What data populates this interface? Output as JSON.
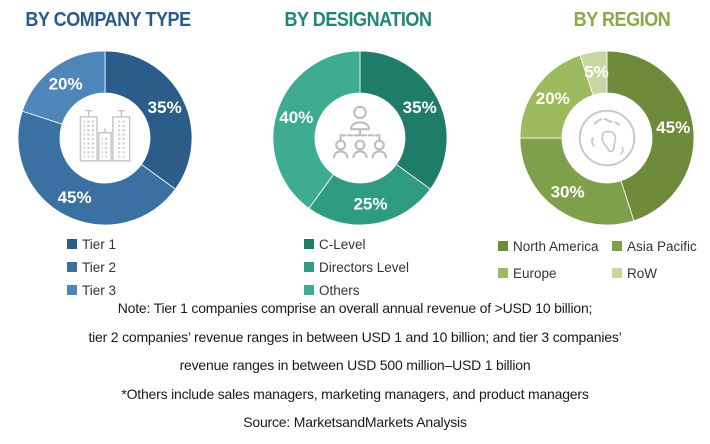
{
  "chart_data": [
    {
      "type": "pie",
      "donut": true,
      "title": "BY COMPANY TYPE",
      "title_color": "#2a5a8c",
      "icon": "buildings-icon",
      "labels": [
        "Tier 1",
        "Tier 2",
        "Tier 3"
      ],
      "values": [
        35,
        45,
        20
      ],
      "value_labels": [
        "35%",
        "45%",
        "20%"
      ],
      "colors": [
        "#2c5d8a",
        "#3a70a2",
        "#4f86ba"
      ],
      "legend_position": "bottom",
      "legend_columns": 1
    },
    {
      "type": "pie",
      "donut": true,
      "title": "BY DESIGNATION",
      "title_color": "#218578",
      "icon": "org-chart-icon",
      "labels": [
        "C-Level",
        "Directors Level",
        "Others"
      ],
      "values": [
        35,
        25,
        40
      ],
      "value_labels": [
        "35%",
        "25%",
        "40%"
      ],
      "colors": [
        "#1e7c68",
        "#2f9c82",
        "#3dac90"
      ],
      "legend_position": "bottom",
      "legend_columns": 1
    },
    {
      "type": "pie",
      "donut": true,
      "title": "BY REGION",
      "title_color": "#8ca74a",
      "icon": "globe-icon",
      "labels": [
        "North America",
        "Asia Pacific",
        "Europe",
        "RoW"
      ],
      "values": [
        45,
        30,
        20,
        5
      ],
      "value_labels": [
        "45%",
        "30%",
        "20%",
        "5%"
      ],
      "colors": [
        "#6d8b3a",
        "#7ea04b",
        "#9cba5e",
        "#c7d7a2"
      ],
      "legend_position": "bottom",
      "legend_columns": 2
    }
  ],
  "notes": [
    "Note: Tier 1 companies comprise an overall annual revenue of >USD 10 billion;",
    "tier 2 companies’ revenue ranges in between USD 1 and 10 billion; and tier 3 companies’",
    "revenue ranges in between USD 500 million–USD 1 billion",
    "*Others include sales managers, marketing managers, and product managers",
    "Source: MarketsandMarkets Analysis"
  ]
}
